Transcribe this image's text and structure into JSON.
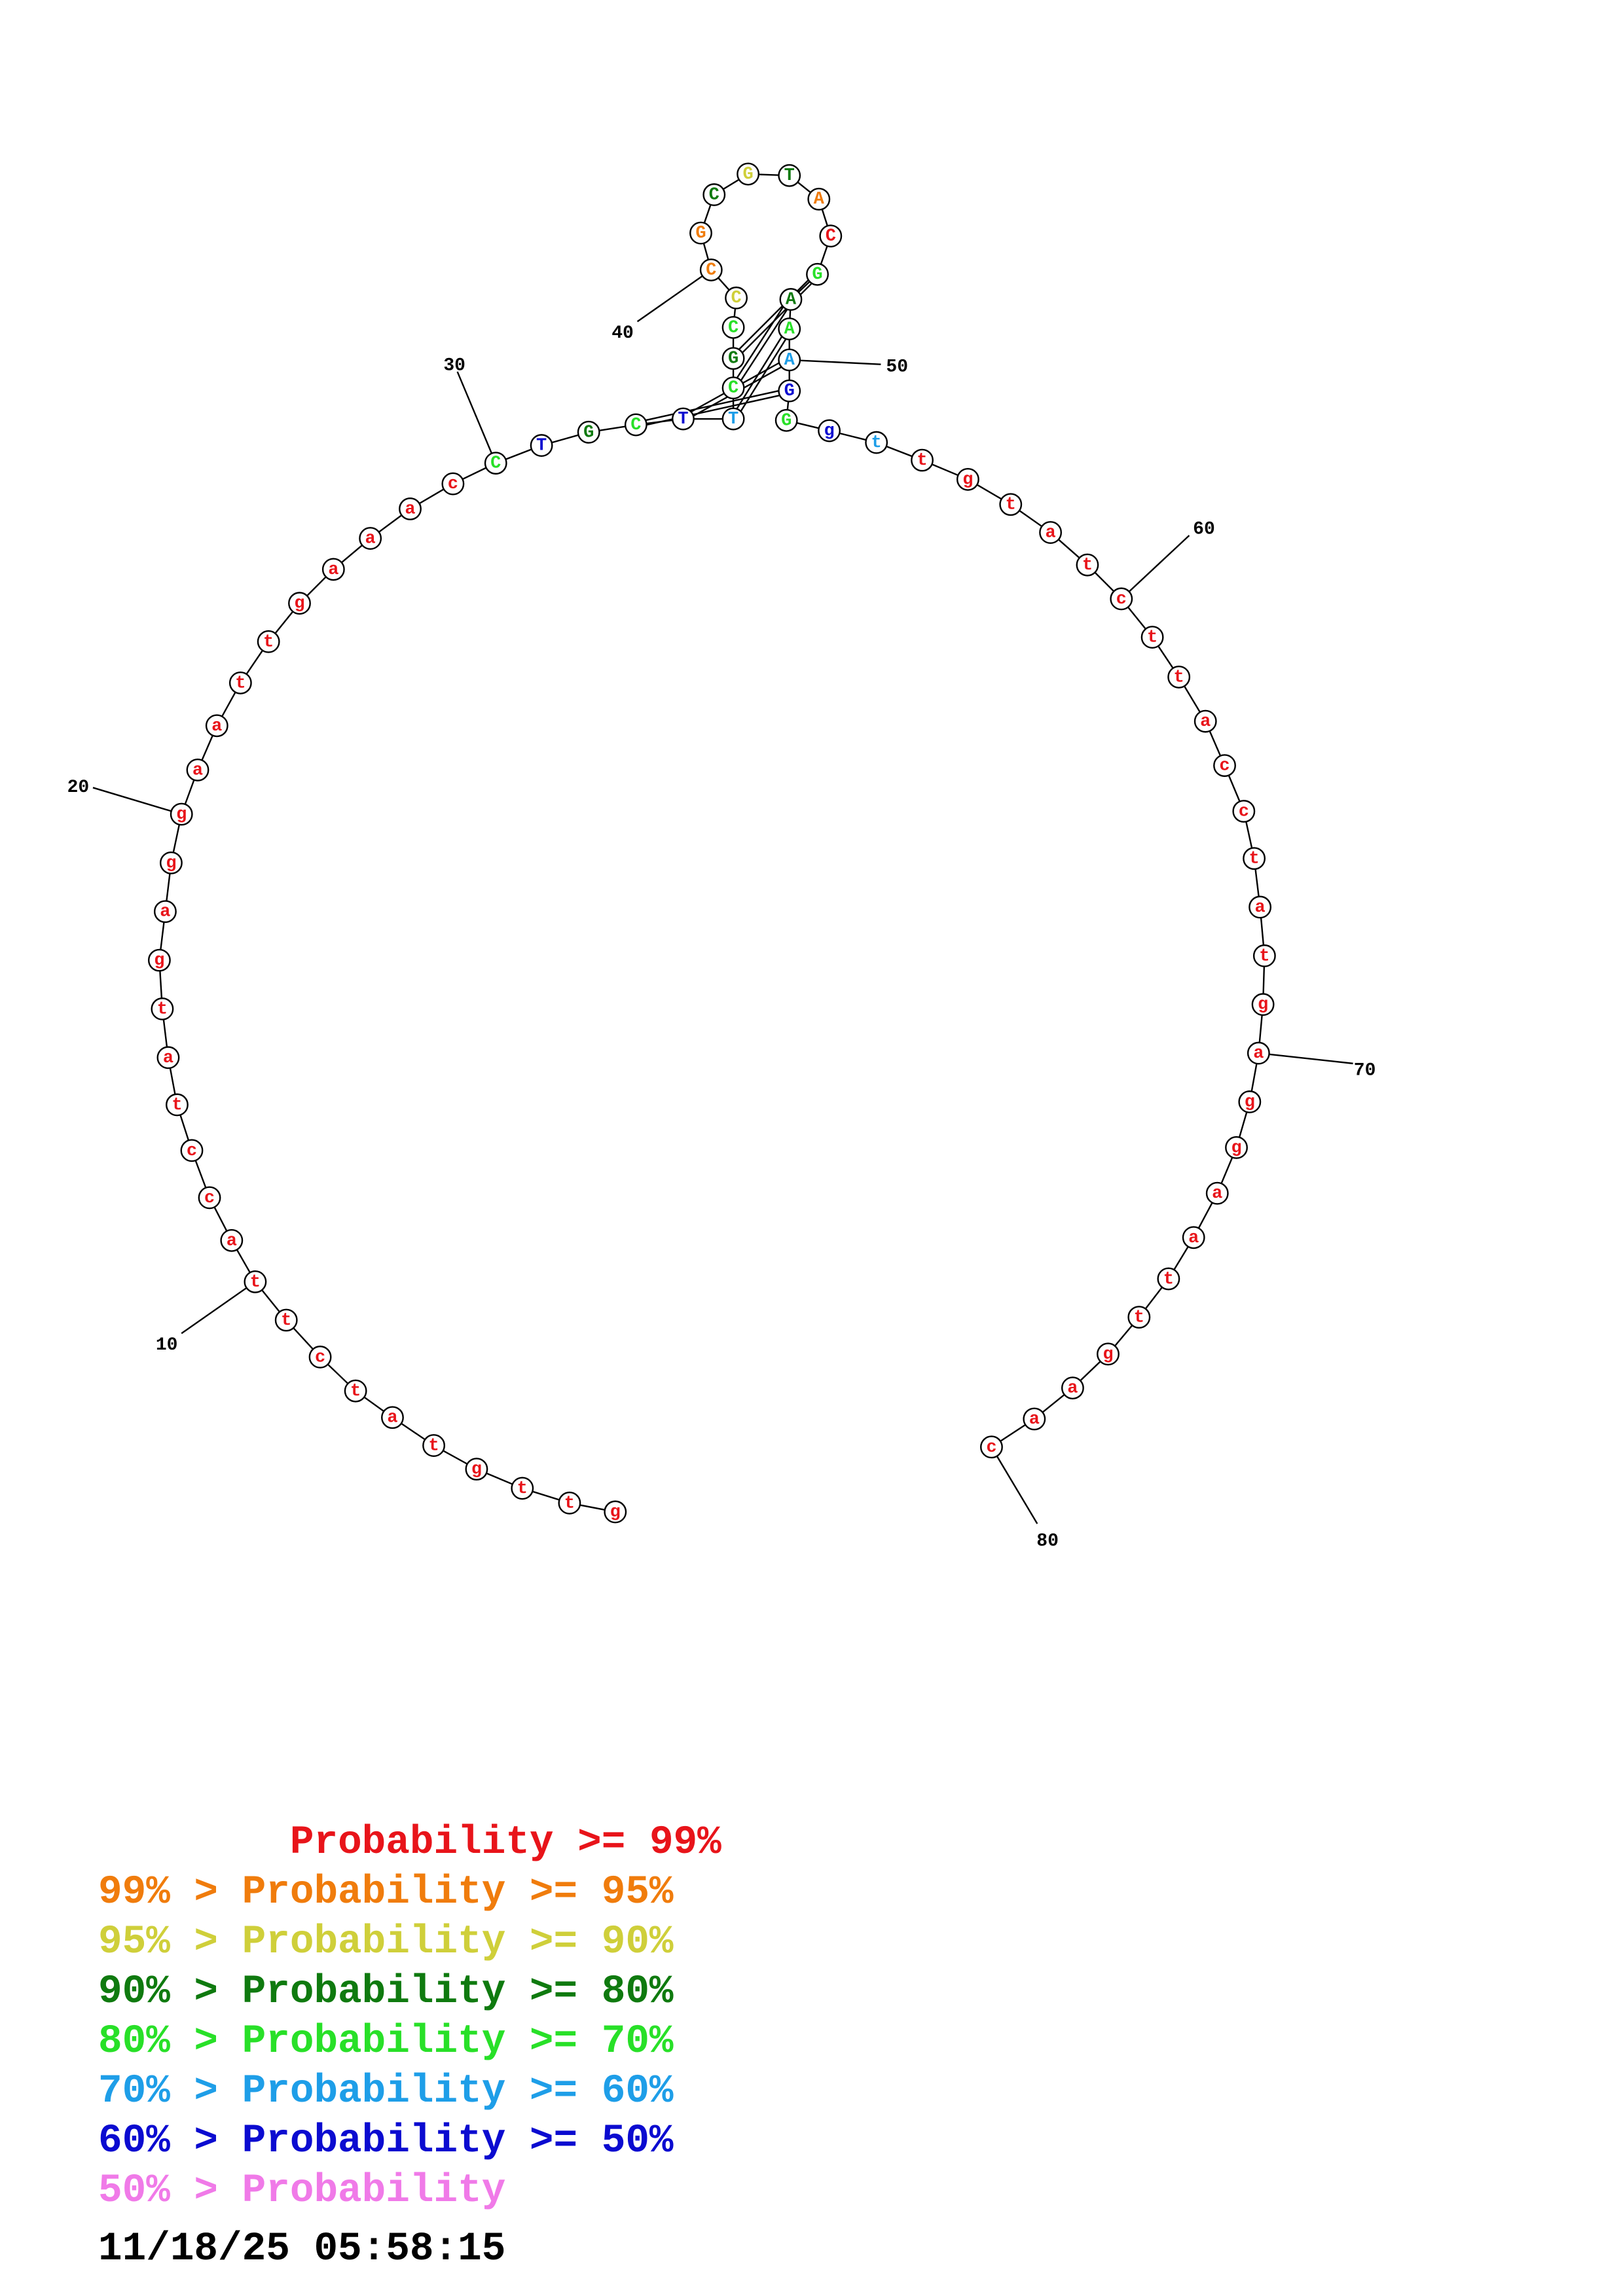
{
  "colors": {
    "red": "#e8141a",
    "orange": "#f07c0c",
    "yellow": "#cfcf3a",
    "darkgreen": "#0f7a0f",
    "green": "#28e028",
    "cyan": "#1e9ee8",
    "blue": "#0b0bd0",
    "pink": "#f07ae8"
  },
  "structure": {
    "sequence": [
      "g",
      "t",
      "t",
      "g",
      "t",
      "a",
      "t",
      "c",
      "t",
      "t",
      "a",
      "c",
      "c",
      "t",
      "a",
      "t",
      "g",
      "a",
      "g",
      "g",
      "a",
      "a",
      "t",
      "t",
      "g",
      "a",
      "a",
      "a",
      "c",
      "C",
      "T",
      "G",
      "C",
      "T",
      "T",
      "C",
      "G",
      "C",
      "C",
      "C",
      "G",
      "C",
      "G",
      "T",
      "A",
      "C",
      "G",
      "A",
      "A",
      "A",
      "G",
      "G",
      "g",
      "t",
      "t",
      "g",
      "t",
      "a",
      "t",
      "c",
      "t",
      "t",
      "a",
      "c",
      "c",
      "t",
      "a",
      "t",
      "g",
      "a",
      "g",
      "g",
      "a",
      "a",
      "t",
      "t",
      "g",
      "a",
      "a",
      "c"
    ],
    "colors": [
      "red",
      "red",
      "red",
      "red",
      "red",
      "red",
      "red",
      "red",
      "red",
      "red",
      "red",
      "red",
      "red",
      "red",
      "red",
      "red",
      "red",
      "red",
      "red",
      "red",
      "red",
      "red",
      "red",
      "red",
      "red",
      "red",
      "red",
      "red",
      "red",
      "green",
      "blue",
      "darkgreen",
      "green",
      "blue",
      "cyan",
      "green",
      "darkgreen",
      "green",
      "yellow",
      "orange",
      "orange",
      "darkgreen",
      "yellow",
      "darkgreen",
      "orange",
      "red",
      "green",
      "darkgreen",
      "green",
      "cyan",
      "blue",
      "green",
      "blue",
      "cyan",
      "red",
      "red",
      "red",
      "red",
      "red",
      "red",
      "red",
      "red",
      "red",
      "red",
      "red",
      "red",
      "red",
      "red",
      "red",
      "red",
      "red",
      "red",
      "red",
      "red",
      "red",
      "red",
      "red",
      "red",
      "red",
      "red"
    ],
    "pairs": [
      [
        33,
        51
      ],
      [
        34,
        50
      ],
      [
        35,
        49
      ],
      [
        36,
        48
      ],
      [
        37,
        47
      ]
    ],
    "position_labels": [
      "10",
      "20",
      "30",
      "40",
      "50",
      "60",
      "70",
      "80"
    ]
  },
  "legend": [
    {
      "prefix": "        ",
      "text": "Probability >= 99%",
      "color": "red"
    },
    {
      "prefix": "",
      "text": "99% > Probability >= 95%",
      "color": "orange"
    },
    {
      "prefix": "",
      "text": "95% > Probability >= 90%",
      "color": "yellow"
    },
    {
      "prefix": "",
      "text": "90% > Probability >= 80%",
      "color": "darkgreen"
    },
    {
      "prefix": "",
      "text": "80% > Probability >= 70%",
      "color": "green"
    },
    {
      "prefix": "",
      "text": "70% > Probability >= 60%",
      "color": "cyan"
    },
    {
      "prefix": "",
      "text": "60% > Probability >= 50%",
      "color": "blue"
    },
    {
      "prefix": "",
      "text": "50% > Probability",
      "color": "pink"
    }
  ],
  "timestamp": "11/18/25 05:58:15"
}
